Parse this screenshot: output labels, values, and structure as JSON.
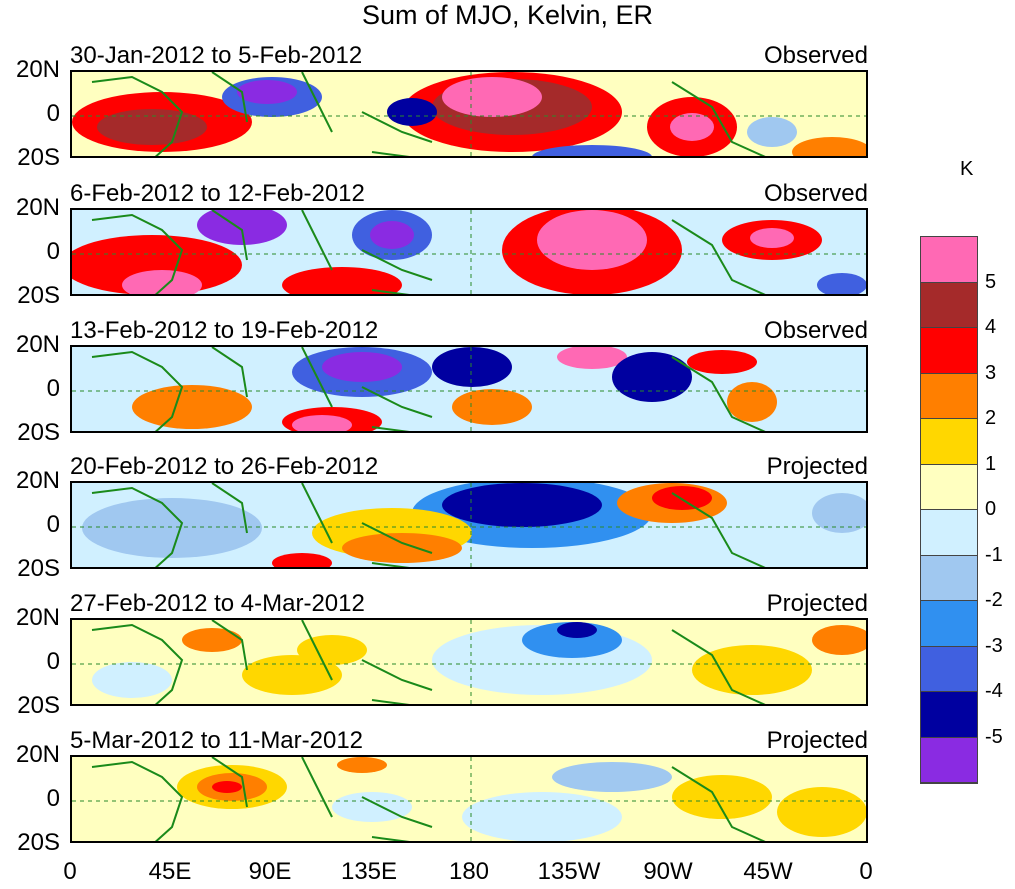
{
  "figure": {
    "title": "Sum of MJO, Kelvin, ER",
    "unit": "K",
    "lat_labels": [
      "20N",
      "0",
      "20S"
    ],
    "lon_labels": [
      "0",
      "45E",
      "90E",
      "135E",
      "180",
      "135W",
      "90W",
      "45W",
      "0"
    ]
  },
  "panels": [
    {
      "date_range": "30-Jan-2012 to 5-Feb-2012",
      "status": "Observed"
    },
    {
      "date_range": "6-Feb-2012 to 12-Feb-2012",
      "status": "Observed"
    },
    {
      "date_range": "13-Feb-2012 to 19-Feb-2012",
      "status": "Observed"
    },
    {
      "date_range": "20-Feb-2012 to 26-Feb-2012",
      "status": "Projected"
    },
    {
      "date_range": "27-Feb-2012 to 4-Mar-2012",
      "status": "Projected"
    },
    {
      "date_range": "5-Mar-2012 to 11-Mar-2012",
      "status": "Projected"
    }
  ],
  "colorbar": {
    "labels": [
      "5",
      "4",
      "3",
      "2",
      "1",
      "0",
      "-1",
      "-2",
      "-3",
      "-4",
      "-5"
    ],
    "colors": [
      "#ff69b4",
      "#a52a2a",
      "#ff0000",
      "#ff7f00",
      "#ffd700",
      "#ffffc0",
      "#d0f0ff",
      "#a0c8f0",
      "#3090f0",
      "#4060e0",
      "#0000a0",
      "#8a2be2"
    ]
  }
}
